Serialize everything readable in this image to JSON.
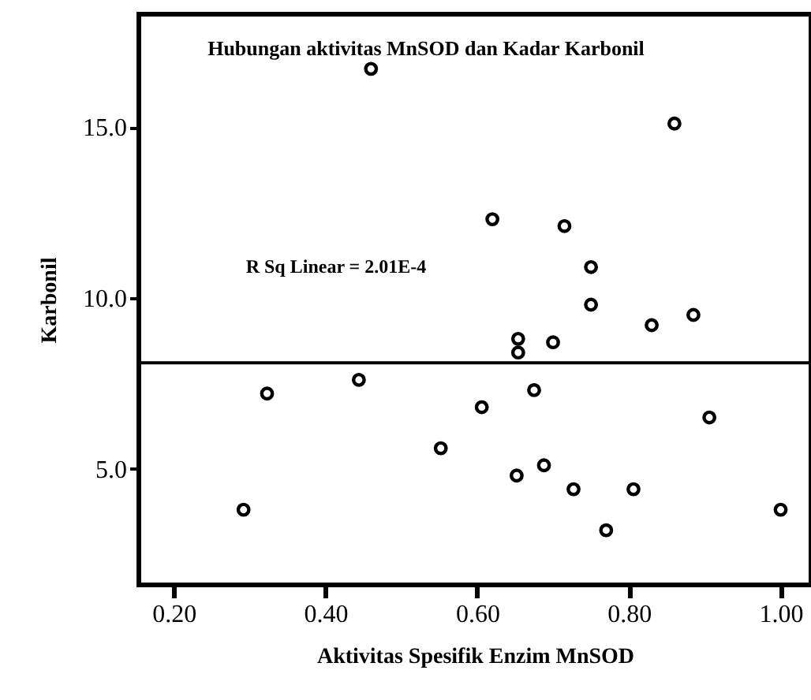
{
  "chart_data": {
    "type": "scatter",
    "title": "Hubungan aktivitas MnSOD dan Kadar  Karbonil",
    "xlabel": "Aktivitas Spesifik Enzim MnSOD",
    "ylabel": "Karbonil",
    "annotations": [
      "R Sq Linear = 2.01E-4"
    ],
    "series": [
      {
        "color": "#000000",
        "marker": "circle",
        "x": [
          0.46,
          0.86,
          0.62,
          0.715,
          0.75,
          0.75,
          0.83,
          0.885,
          0.654,
          0.654,
          0.7,
          0.323,
          0.444,
          0.675,
          0.606,
          0.906,
          0.552,
          0.652,
          0.688,
          0.727,
          0.806,
          0.292,
          0.77,
          1.0
        ],
        "values": [
          16.7,
          15.1,
          12.3,
          12.1,
          10.9,
          9.8,
          9.2,
          9.5,
          8.8,
          8.4,
          8.7,
          7.2,
          7.6,
          7.3,
          6.8,
          6.5,
          5.6,
          4.8,
          5.1,
          4.4,
          4.4,
          3.8,
          3.2,
          3.8
        ]
      },
      {
        "type": "line",
        "color": "#000000",
        "marker": "none",
        "line_style": "solid",
        "x": [
          0.155,
          1.04
        ],
        "values": [
          8.1,
          8.1
        ]
      }
    ],
    "xlim": [
      0.154,
      1.04
    ],
    "ylim": [
      1.6,
      18.3
    ],
    "xticks": [
      {
        "value": 0.2,
        "label": "0.20"
      },
      {
        "value": 0.4,
        "label": "0.40"
      },
      {
        "value": 0.6,
        "label": "0.60"
      },
      {
        "value": 0.8,
        "label": "0.80"
      },
      {
        "value": 1.0,
        "label": "1.00"
      }
    ],
    "yticks": [
      {
        "value": 5,
        "label": "5.0"
      },
      {
        "value": 10,
        "label": "10.0"
      },
      {
        "value": 15,
        "label": "15.0"
      }
    ],
    "grid": false
  }
}
